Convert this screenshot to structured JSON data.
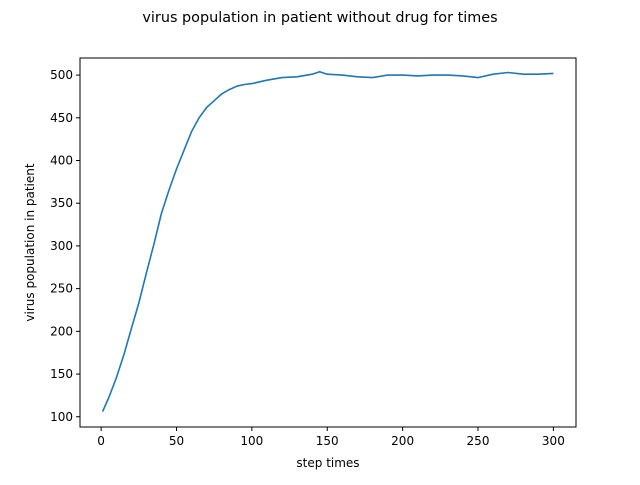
{
  "chart_data": {
    "type": "line",
    "title": "virus population in patient without drug for times",
    "xlabel": "step times",
    "ylabel": "virus population in patient",
    "xlim": [
      -14,
      315
    ],
    "ylim": [
      88,
      520
    ],
    "xticks": [
      0,
      50,
      100,
      150,
      200,
      250,
      300
    ],
    "yticks": [
      100,
      150,
      200,
      250,
      300,
      350,
      400,
      450,
      500
    ],
    "grid": false,
    "line_color": "#1f77b4",
    "series": [
      {
        "x": [
          1,
          5,
          10,
          15,
          20,
          25,
          30,
          35,
          40,
          45,
          50,
          55,
          60,
          65,
          70,
          75,
          80,
          85,
          90,
          95,
          100,
          110,
          120,
          130,
          140,
          145,
          150,
          160,
          170,
          180,
          190,
          200,
          210,
          220,
          230,
          240,
          250,
          260,
          270,
          280,
          290,
          300
        ],
        "y": [
          106,
          122,
          145,
          172,
          203,
          233,
          268,
          302,
          338,
          365,
          390,
          412,
          434,
          450,
          462,
          470,
          478,
          483,
          487,
          489,
          490,
          494,
          497,
          498,
          501,
          504,
          501,
          500,
          498,
          497,
          500,
          500,
          499,
          500,
          500,
          499,
          497,
          501,
          503,
          501,
          501,
          502
        ]
      }
    ]
  }
}
